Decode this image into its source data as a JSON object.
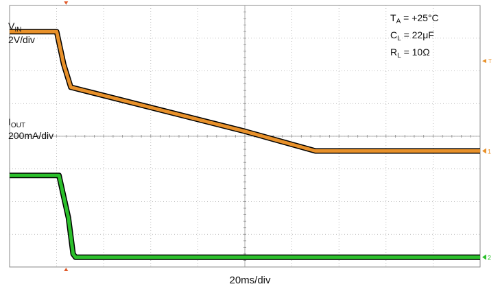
{
  "chart_data": {
    "type": "line",
    "title": "",
    "xlabel": "20ms/div",
    "x_divisions": 10,
    "y_divisions": 8,
    "conditions": [
      {
        "main": "T",
        "sub": "A",
        "rest": " = +25°C"
      },
      {
        "main": "C",
        "sub": "L",
        "rest": " = 22μF"
      },
      {
        "main": "R",
        "sub": "L",
        "rest": " = 10Ω"
      }
    ],
    "series": [
      {
        "name_main": "V",
        "name_sub": "IN",
        "scale": "2V/div",
        "color": "#e8912a",
        "marker": "1",
        "unit": "div",
        "x": [
          0,
          1.0,
          1.15,
          1.3,
          5.0,
          6.5,
          10.0
        ],
        "y": [
          -0.8,
          -0.8,
          -1.8,
          -2.5,
          -3.85,
          -4.45,
          -4.45
        ]
      },
      {
        "name_main": "I",
        "name_sub": "OUT",
        "scale": "200mA/div",
        "color": "#2cc02c",
        "marker": "2",
        "unit": "div",
        "x": [
          0,
          1.05,
          1.25,
          1.35,
          1.4,
          10.0
        ],
        "y": [
          -5.2,
          -5.2,
          -6.5,
          -7.6,
          -7.7,
          -7.7
        ]
      }
    ],
    "trigger_marker": "T",
    "grid": true
  }
}
